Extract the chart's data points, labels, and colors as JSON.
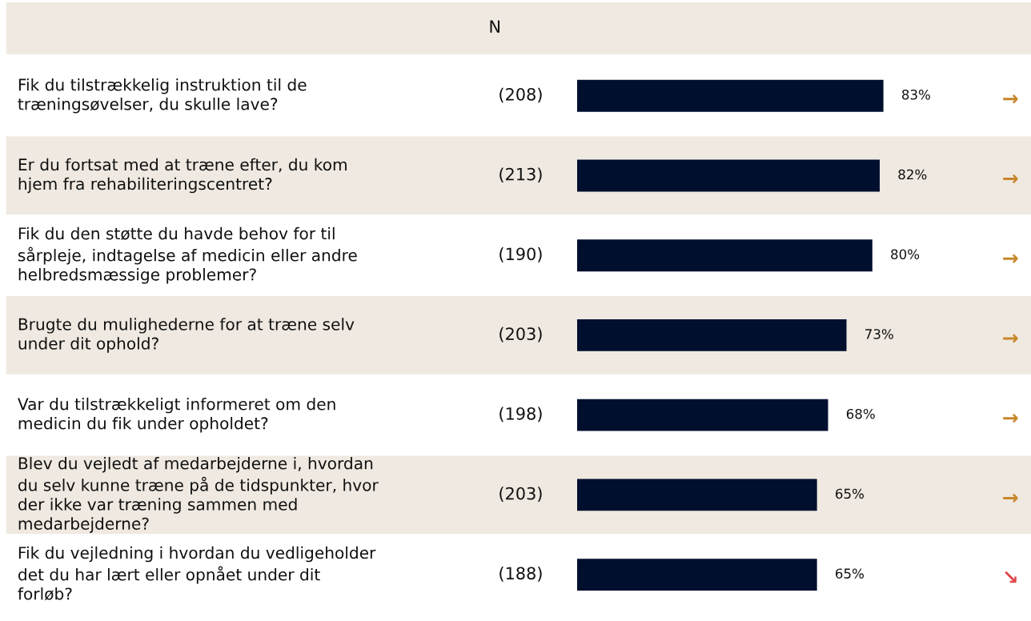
{
  "chart_data": {
    "type": "bar",
    "orientation": "horizontal",
    "categories": [
      "Fik du tilstrækkelig instruktion til de\ntræningsøvelser, du skulle lave?",
      "Er du fortsat med at træne efter, du kom\nhjem fra rehabiliteringscentret?",
      "Fik du den støtte du havde behov for til\nsårpleje, indtagelse af medicin eller andre\nhelbredsmæssige problemer?",
      "Brugte du mulighederne for at træne selv\nunder dit ophold?",
      "Var du tilstrækkeligt informeret om den\nmedicin du fik under opholdet?",
      "Blev du vejledt af medarbejderne i, hvordan\ndu selv kunne træne på de tidspunkter, hvor\nder ikke var træning sammen med\nmedarbejderne?",
      "Fik du vejledning i hvordan du vedligeholder\ndet du har lært eller opnået under dit\nforløb?"
    ],
    "values": [
      83,
      82,
      80,
      73,
      68,
      65,
      65
    ],
    "value_labels": [
      "83%",
      "82%",
      "80%",
      "73%",
      "68%",
      "65%",
      "65%"
    ],
    "color": "#000f2e",
    "annotations": [
      "N",
      "(208)",
      "(213)",
      "(190)",
      "(203)",
      "(198)",
      "(203)",
      "(188)",
      "→",
      "→",
      "→",
      "→",
      "→",
      "→",
      "↘"
    ],
    "legend": false
  }
}
